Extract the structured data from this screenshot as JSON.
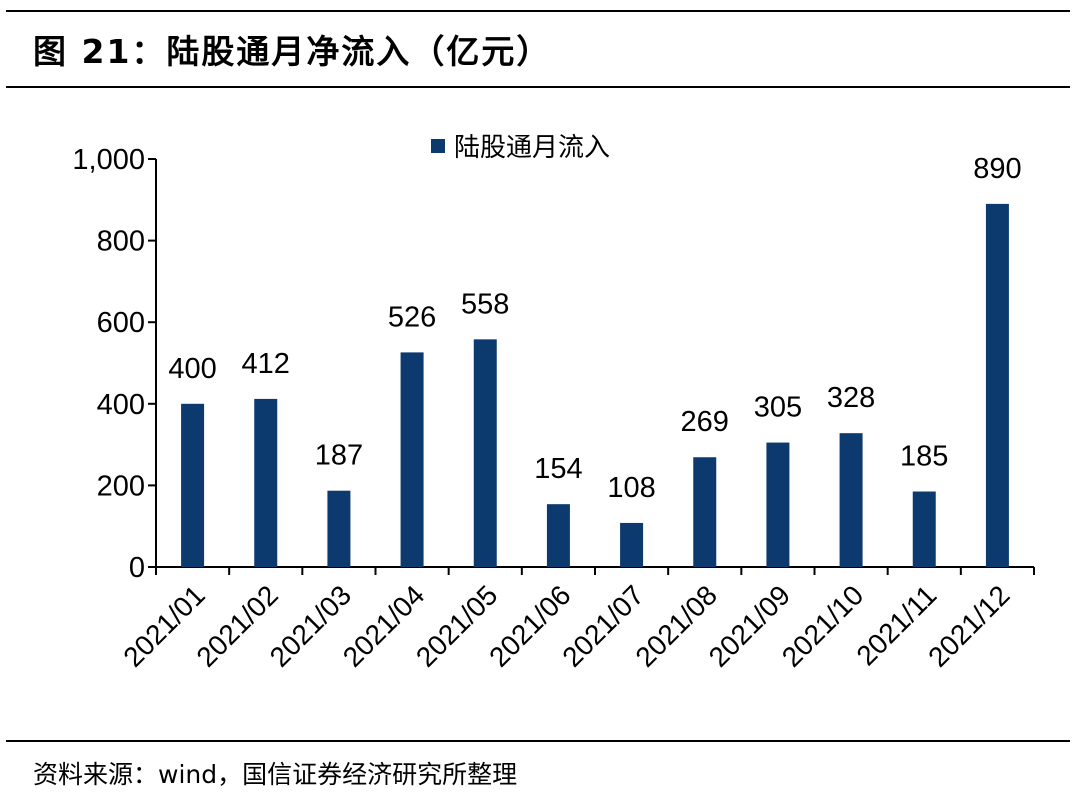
{
  "figure": {
    "title": "图 21：陆股通月净流入（亿元）",
    "source": "资料来源：wind，国信证券经济研究所整理"
  },
  "colors": {
    "bar": "#0d3a6e",
    "axis": "#000000"
  },
  "chart_data": {
    "type": "bar",
    "categories": [
      "2021/01",
      "2021/02",
      "2021/03",
      "2021/04",
      "2021/05",
      "2021/06",
      "2021/07",
      "2021/08",
      "2021/09",
      "2021/10",
      "2021/11",
      "2021/12"
    ],
    "series": [
      {
        "name": "陆股通月流入",
        "values": [
          400,
          412,
          187,
          526,
          558,
          154,
          108,
          269,
          305,
          328,
          185,
          890
        ]
      }
    ],
    "data_labels": [
      "400",
      "412",
      "187",
      "526",
      "558",
      "154",
      "108",
      "269",
      "305",
      "328",
      "185",
      "890"
    ],
    "ylim": [
      0,
      1000
    ],
    "yticks": [
      0,
      200,
      400,
      600,
      800,
      1000
    ],
    "ytick_labels": [
      "0",
      "200",
      "400",
      "600",
      "800",
      "1,000"
    ],
    "xlabel": "",
    "ylabel": "",
    "grid": false,
    "legend_position": "top-center"
  }
}
